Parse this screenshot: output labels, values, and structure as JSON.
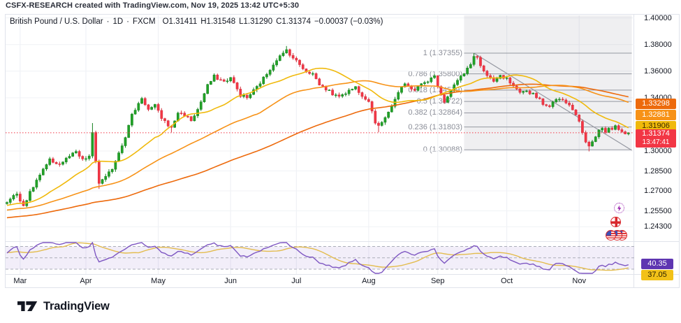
{
  "attribution": "CSFX-RESEARCH created with TradingView.com, Nov 19, 2025 13:42 UTC+5:30",
  "legend": {
    "symbol": "British Pound / U.S. Dollar",
    "separator": "·",
    "interval": "1D",
    "exchange": "FXCM",
    "open": "O1.31411",
    "high": "H1.31548",
    "low": "L1.31290",
    "close": "C1.31374",
    "change": "−0.00037 (−0.03%)"
  },
  "price_scale": {
    "badges": [
      {
        "name": "ma-slow-price-badge",
        "label": "1.33298",
        "value": 1.33298,
        "bg": "#ED6A0C",
        "fg": "#ffffff"
      },
      {
        "name": "ma-mid-price-badge",
        "label": "1.32881",
        "value": 1.32881,
        "bg": "#F79217",
        "fg": "#ffffff"
      },
      {
        "name": "ma-fast-price-badge",
        "label": "1.31906",
        "value": 1.31906,
        "bg": "#F0B90B",
        "fg": "#3b2c00"
      },
      {
        "name": "last-price-badge",
        "label": "1.31374",
        "value": 1.31374,
        "bg": "#F23645",
        "fg": "#ffffff",
        "countdown": "13:47:41"
      }
    ]
  },
  "indicator_pane": {
    "rsi_badge": {
      "label": "40.35",
      "bg": "#5E35B1",
      "fg": "#ffffff"
    },
    "rsi_ma_badge": {
      "label": "37.05",
      "bg": "#F2C118",
      "fg": "#2a2000"
    }
  },
  "footer": {
    "brand": "TradingView"
  },
  "event_icons": [
    {
      "name": "economic-event-lightning-icon",
      "color": "#9C27B0"
    },
    {
      "name": "economic-event-uk-flag-icon",
      "color": "#D8272C"
    },
    {
      "name": "economic-event-us-flags-icon",
      "color": "#D8272C",
      "count": 3
    }
  ],
  "chart_data": {
    "type": "candlestick",
    "title": "British Pound / U.S. Dollar, 1D, FXCM",
    "pair": "GBP/USD",
    "timeframe": "1D",
    "ohlc_last": {
      "open": 1.31411,
      "high": 1.31548,
      "low": 1.3129,
      "close": 1.31374,
      "change": -0.00037,
      "change_pct": -0.03
    },
    "last_price": 1.31374,
    "x_range_days": 190,
    "y_axis": {
      "min": 1.232,
      "max": 1.402,
      "scale": "price"
    },
    "x_ticks": [
      {
        "label": "Mar",
        "day": 4
      },
      {
        "label": "Apr",
        "day": 24
      },
      {
        "label": "May",
        "day": 46
      },
      {
        "label": "Jun",
        "day": 68
      },
      {
        "label": "Jul",
        "day": 88
      },
      {
        "label": "Aug",
        "day": 110
      },
      {
        "label": "Sep",
        "day": 131
      },
      {
        "label": "Oct",
        "day": 152
      },
      {
        "label": "Nov",
        "day": 174
      }
    ],
    "y_ticks": [
      {
        "label": "1.40000",
        "value": 1.4
      },
      {
        "label": "1.38000",
        "value": 1.38
      },
      {
        "label": "1.36000",
        "value": 1.36
      },
      {
        "label": "1.34000",
        "value": 1.34
      },
      {
        "label": "1.30000",
        "value": 1.3
      },
      {
        "label": "1.28500",
        "value": 1.285
      },
      {
        "label": "1.27000",
        "value": 1.27
      },
      {
        "label": "1.25500",
        "value": 1.255
      },
      {
        "label": "1.24300",
        "value": 1.243
      }
    ],
    "price_keyframes": [
      [
        0,
        1.262
      ],
      [
        3,
        1.268
      ],
      [
        5,
        1.259
      ],
      [
        9,
        1.278
      ],
      [
        13,
        1.293
      ],
      [
        16,
        1.29
      ],
      [
        19,
        1.296
      ],
      [
        21,
        1.299
      ],
      [
        23,
        1.293
      ],
      [
        25,
        1.296
      ],
      [
        26,
        1.313
      ],
      [
        27,
        1.292
      ],
      [
        28,
        1.276
      ],
      [
        30,
        1.28
      ],
      [
        32,
        1.287
      ],
      [
        34,
        1.299
      ],
      [
        36,
        1.311
      ],
      [
        38,
        1.327
      ],
      [
        41,
        1.34
      ],
      [
        43,
        1.331
      ],
      [
        45,
        1.334
      ],
      [
        47,
        1.325
      ],
      [
        50,
        1.317
      ],
      [
        52,
        1.329
      ],
      [
        54,
        1.327
      ],
      [
        56,
        1.323
      ],
      [
        58,
        1.331
      ],
      [
        61,
        1.349
      ],
      [
        63,
        1.356
      ],
      [
        66,
        1.352
      ],
      [
        68,
        1.355
      ],
      [
        71,
        1.342
      ],
      [
        73,
        1.34
      ],
      [
        76,
        1.348
      ],
      [
        79,
        1.358
      ],
      [
        82,
        1.369
      ],
      [
        84,
        1.373
      ],
      [
        85,
        1.376
      ],
      [
        87,
        1.37
      ],
      [
        89,
        1.365
      ],
      [
        91,
        1.36
      ],
      [
        93,
        1.358
      ],
      [
        95,
        1.35
      ],
      [
        98,
        1.345
      ],
      [
        100,
        1.341
      ],
      [
        103,
        1.344
      ],
      [
        106,
        1.348
      ],
      [
        108,
        1.342
      ],
      [
        110,
        1.338
      ],
      [
        112,
        1.322
      ],
      [
        113,
        1.318
      ],
      [
        115,
        1.326
      ],
      [
        117,
        1.334
      ],
      [
        119,
        1.344
      ],
      [
        121,
        1.35
      ],
      [
        124,
        1.346
      ],
      [
        126,
        1.35
      ],
      [
        128,
        1.353
      ],
      [
        130,
        1.356
      ],
      [
        132,
        1.343
      ],
      [
        133,
        1.337
      ],
      [
        135,
        1.346
      ],
      [
        137,
        1.353
      ],
      [
        139,
        1.358
      ],
      [
        141,
        1.365
      ],
      [
        142,
        1.372
      ],
      [
        143,
        1.37
      ],
      [
        144,
        1.364
      ],
      [
        146,
        1.356
      ],
      [
        148,
        1.352
      ],
      [
        150,
        1.356
      ],
      [
        152,
        1.354
      ],
      [
        154,
        1.348
      ],
      [
        156,
        1.343
      ],
      [
        158,
        1.345
      ],
      [
        160,
        1.343
      ],
      [
        162,
        1.339
      ],
      [
        164,
        1.333
      ],
      [
        166,
        1.336
      ],
      [
        168,
        1.34
      ],
      [
        170,
        1.337
      ],
      [
        172,
        1.332
      ],
      [
        174,
        1.323
      ],
      [
        175,
        1.314
      ],
      [
        176,
        1.306
      ],
      [
        177,
        1.303
      ],
      [
        178,
        1.306
      ],
      [
        179,
        1.311
      ],
      [
        180,
        1.315
      ],
      [
        181,
        1.317
      ],
      [
        182,
        1.314
      ],
      [
        183,
        1.318
      ],
      [
        184,
        1.316
      ],
      [
        185,
        1.319
      ],
      [
        186,
        1.317
      ],
      [
        187,
        1.315
      ],
      [
        188,
        1.314
      ],
      [
        189,
        1.31374
      ]
    ],
    "extremes": [
      {
        "day": 26,
        "high": 1.321
      },
      {
        "day": 28,
        "low": 1.2715
      },
      {
        "day": 50,
        "low": 1.314
      },
      {
        "day": 85,
        "high": 1.3789
      },
      {
        "day": 113,
        "low": 1.3141
      },
      {
        "day": 142,
        "high": 1.37355
      },
      {
        "day": 177,
        "low": 1.2997
      }
    ],
    "candle_colors": {
      "up": "#22A227",
      "up_border": "#15801F",
      "down": "#F23645",
      "down_border": "#D32F3D"
    },
    "moving_averages": [
      {
        "name": "sma-fast",
        "period": 20,
        "color": "#F0B90B",
        "last": 1.31906
      },
      {
        "name": "sma-mid",
        "period": 50,
        "color": "#F79217",
        "last": 1.32881
      },
      {
        "name": "sma-slow",
        "period": 100,
        "color": "#ED6A0C",
        "last": 1.33298
      }
    ],
    "fib_retracement": {
      "levels": [
        {
          "ratio": 1,
          "price": 1.37355,
          "label": "1 (1.37355)"
        },
        {
          "ratio": 0.786,
          "price": 1.358,
          "label": "0.786 (1.35800)"
        },
        {
          "ratio": 0.618,
          "price": 1.34579,
          "label": "0.618 (1.34579)"
        },
        {
          "ratio": 0.5,
          "price": 1.33722,
          "label": "0.5 (1.33722)"
        },
        {
          "ratio": 0.382,
          "price": 1.32864,
          "label": "0.382 (1.32864)"
        },
        {
          "ratio": 0.236,
          "price": 1.31803,
          "label": "0.236 (1.31803)"
        },
        {
          "ratio": 0,
          "price": 1.30088,
          "label": "0 (1.30088)"
        }
      ]
    },
    "trendline": {
      "from_day": 142,
      "from_price": 1.37355,
      "to_day": 190,
      "to_price": 1.3005
    },
    "highlight_region": {
      "from_day": 139,
      "to_day": 190,
      "bottom_price": 1.30088
    },
    "last_price_line": {
      "price": 1.31374,
      "style": "dotted",
      "color": "#F23645"
    },
    "rsi": {
      "period": 14,
      "ma_period": 14,
      "last": 40.35,
      "ma_last": 37.05,
      "upper": 70,
      "middle": 50,
      "lower": 30,
      "line_color": "#7E57C2",
      "ma_color": "#E3BC4E",
      "band_color": "rgba(126,87,194,0.10)"
    }
  }
}
